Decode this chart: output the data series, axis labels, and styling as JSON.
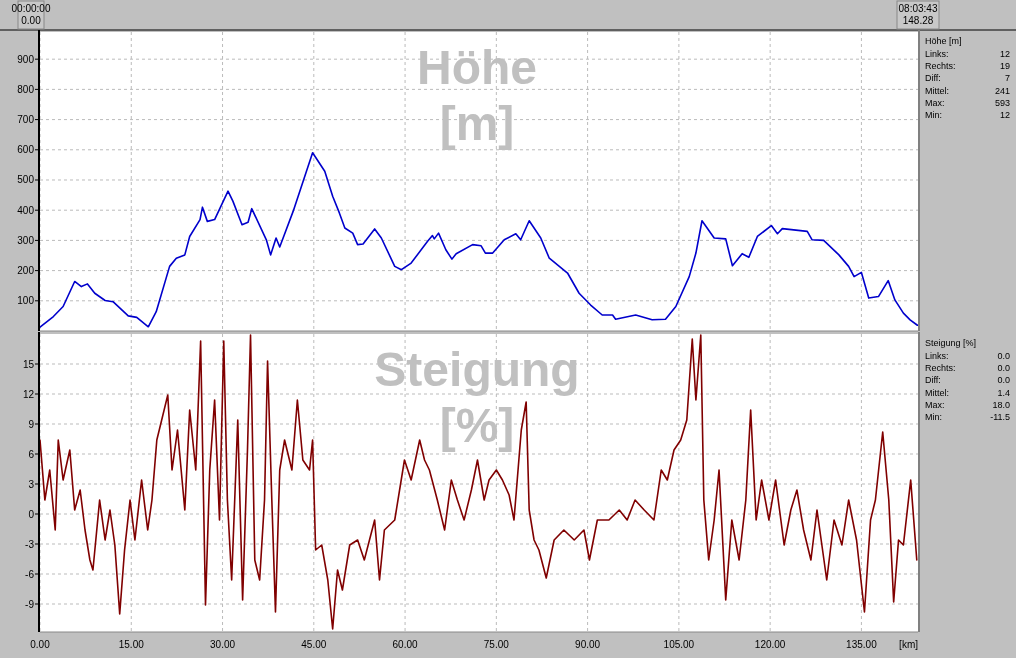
{
  "chart_data": [
    {
      "type": "line",
      "title": "Höhe [m]",
      "tick_labels": "y",
      "grid": true,
      "xlim": [
        0,
        144.3
      ],
      "ylim": [
        0,
        990
      ],
      "xticks": [
        {
          "value": 0,
          "label": null
        },
        {
          "value": 15,
          "label": null
        },
        {
          "value": 30,
          "label": null
        },
        {
          "value": 45,
          "label": null
        },
        {
          "value": 60,
          "label": null
        },
        {
          "value": 75,
          "label": null
        },
        {
          "value": 90,
          "label": null
        },
        {
          "value": 105,
          "label": null
        },
        {
          "value": 120,
          "label": null
        },
        {
          "value": 135,
          "label": null
        }
      ],
      "yticks": [
        100,
        200,
        300,
        400,
        500,
        600,
        700,
        800,
        900
      ],
      "annotations": [
        "00:00:00",
        "0.00",
        "08:03:43",
        "148.28",
        "Höhe [m]",
        "Links:",
        "12",
        "Rechts:",
        "19",
        "Diff:",
        "7",
        "Mittel:",
        "241",
        "Max:",
        "593",
        "Min:",
        "12"
      ],
      "series": [
        {
          "color": "#0000cc",
          "x": [
            0,
            2.2,
            3.8,
            5.7,
            6.8,
            7.8,
            9.0,
            10.7,
            12.0,
            14.5,
            15.9,
            17.8,
            19.1,
            21.3,
            22.4,
            23.8,
            24.6,
            26.3,
            26.7,
            27.5,
            28.7,
            30.9,
            31.7,
            33.2,
            34.2,
            34.8,
            37.2,
            37.9,
            38.8,
            39.4,
            41.6,
            44.8,
            46.8,
            48.1,
            49.2,
            50.1,
            51.4,
            52.2,
            53.1,
            55.0,
            56.1,
            58.3,
            59.4,
            61.0,
            63.7,
            64.5,
            64.8,
            65.5,
            66.7,
            67.7,
            68.4,
            71.1,
            72.5,
            73.2,
            74.4,
            76.3,
            78.2,
            79.0,
            80.4,
            82.3,
            83.7,
            86.7,
            88.6,
            90.5,
            92.4,
            94.1,
            94.6,
            97.9,
            100.6,
            102.8,
            104.5,
            106.7,
            107.8,
            108.8,
            110.8,
            112.7,
            113.8,
            115.4,
            116.5,
            117.9,
            120.2,
            121.2,
            122.0,
            126.1,
            126.9,
            128.8,
            131.3,
            132.9,
            133.8,
            135.0,
            136.2,
            137.8,
            139.4,
            140.5,
            141.9,
            143.0,
            144.2
          ],
          "values": [
            13,
            48,
            81,
            164,
            147,
            156,
            125,
            101,
            97,
            50,
            45,
            14,
            64,
            214,
            241,
            252,
            313,
            369,
            410,
            363,
            369,
            463,
            430,
            352,
            360,
            405,
            302,
            252,
            308,
            278,
            396,
            590,
            529,
            446,
            391,
            341,
            324,
            286,
            288,
            338,
            308,
            214,
            203,
            225,
            297,
            316,
            305,
            324,
            269,
            238,
            256,
            286,
            282,
            258,
            258,
            302,
            322,
            302,
            365,
            308,
            241,
            192,
            125,
            86,
            53,
            53,
            39,
            53,
            37,
            39,
            81,
            180,
            258,
            365,
            308,
            305,
            216,
            256,
            244,
            313,
            349,
            322,
            339,
            330,
            302,
            300,
            252,
            214,
            180,
            194,
            109,
            114,
            167,
            103,
            59,
            37,
            19
          ]
        }
      ]
    },
    {
      "type": "line",
      "title": "Steigung [%]",
      "xlabel": "[km]",
      "grid": true,
      "xlim": [
        0,
        144.3
      ],
      "ylim": [
        -11.8,
        18
      ],
      "xticks": [
        {
          "value": 0,
          "label": "0.00"
        },
        {
          "value": 15,
          "label": "15.00"
        },
        {
          "value": 30,
          "label": "30.00"
        },
        {
          "value": 45,
          "label": "45.00"
        },
        {
          "value": 60,
          "label": "60.00"
        },
        {
          "value": 75,
          "label": "75.00"
        },
        {
          "value": 90,
          "label": "90.00"
        },
        {
          "value": 105,
          "label": "105.00"
        },
        {
          "value": 120,
          "label": "120.00"
        },
        {
          "value": 135,
          "label": "135.00"
        }
      ],
      "yticks": [
        -9,
        -6,
        -3,
        0,
        3,
        6,
        9,
        12,
        15
      ],
      "annotations": [
        "Steigung [%]",
        "Links:",
        "0.0",
        "Rechts:",
        "0.0",
        "Diff:",
        "0.0",
        "Mittel:",
        "1.4",
        "Max:",
        "18.0",
        "Min:",
        "-11.5"
      ],
      "series": [
        {
          "color": "#800000",
          "x": [
            0,
            0.8,
            1.6,
            2.5,
            3.0,
            3.8,
            4.9,
            5.7,
            6.6,
            7.4,
            8.2,
            8.7,
            9.8,
            10.7,
            11.5,
            12.3,
            13.1,
            13.9,
            14.8,
            15.6,
            16.7,
            17.7,
            18.4,
            19.2,
            20.0,
            21.0,
            21.7,
            22.6,
            23.8,
            24.6,
            25.6,
            26.4,
            27.2,
            27.9,
            28.7,
            29.5,
            30.2,
            30.8,
            31.5,
            32.5,
            33.3,
            34.1,
            34.6,
            35.3,
            36.1,
            36.9,
            37.4,
            38.1,
            38.7,
            39.4,
            40.2,
            41.4,
            42.3,
            43.2,
            44.3,
            44.8,
            45.3,
            46.3,
            47.3,
            48.1,
            48.9,
            49.7,
            50.9,
            52.2,
            53.3,
            55.0,
            55.8,
            56.6,
            58.3,
            59.1,
            59.9,
            61.0,
            62.4,
            63.2,
            64.0,
            65.3,
            66.5,
            67.6,
            68.6,
            69.7,
            70.9,
            71.9,
            73.0,
            73.8,
            75.0,
            76.0,
            77.1,
            77.9,
            79.1,
            79.9,
            80.4,
            81.2,
            82.0,
            83.2,
            84.5,
            86.1,
            87.8,
            89.4,
            90.3,
            91.6,
            93.5,
            95.2,
            96.5,
            97.8,
            99.3,
            100.9,
            102.1,
            103.1,
            104.2,
            105.3,
            106.3,
            107.2,
            107.8,
            108.6,
            109.1,
            109.9,
            110.8,
            111.6,
            112.7,
            113.7,
            114.9,
            116.0,
            116.8,
            117.7,
            118.6,
            119.8,
            120.9,
            122.3,
            123.4,
            124.4,
            125.5,
            126.7,
            127.7,
            129.3,
            130.5,
            131.8,
            132.9,
            134.2,
            135.5,
            136.5,
            137.3,
            138.5,
            139.5,
            140.3,
            141.1,
            141.9,
            143.1,
            144.1
          ],
          "values": [
            7.4,
            1.4,
            4.4,
            -1.6,
            7.4,
            3.4,
            6.4,
            0.4,
            2.4,
            -1.6,
            -4.6,
            -5.6,
            1.4,
            -2.6,
            0.4,
            -3.1,
            -10.0,
            -3.6,
            1.4,
            -2.6,
            3.4,
            -1.6,
            1.4,
            7.4,
            9.4,
            11.9,
            4.4,
            8.4,
            0.4,
            10.4,
            4.4,
            17.3,
            -9.1,
            4.4,
            11.4,
            -0.6,
            17.3,
            1.4,
            -6.6,
            9.4,
            -8.6,
            6.4,
            17.9,
            -4.6,
            -6.6,
            1.4,
            15.3,
            1.4,
            -9.8,
            4.4,
            7.4,
            4.4,
            11.4,
            5.4,
            4.4,
            7.4,
            -3.6,
            -3.1,
            -6.6,
            -11.5,
            -5.6,
            -7.6,
            -3.1,
            -2.6,
            -4.6,
            -0.6,
            -6.6,
            -1.6,
            -0.6,
            2.4,
            5.4,
            3.4,
            7.4,
            5.4,
            4.4,
            1.4,
            -1.6,
            3.4,
            1.4,
            -0.6,
            2.4,
            5.4,
            1.4,
            3.4,
            4.4,
            3.4,
            1.9,
            -0.6,
            8.4,
            11.2,
            0.4,
            -2.6,
            -3.6,
            -6.4,
            -2.6,
            -1.6,
            -2.6,
            -1.6,
            -4.6,
            -0.6,
            -0.6,
            0.4,
            -0.6,
            1.4,
            0.4,
            -0.6,
            4.4,
            3.4,
            6.4,
            7.4,
            9.4,
            17.5,
            11.4,
            17.9,
            1.4,
            -4.6,
            -0.6,
            4.4,
            -8.6,
            -0.6,
            -4.6,
            1.4,
            10.4,
            -0.6,
            3.4,
            -0.6,
            3.4,
            -3.1,
            0.4,
            2.4,
            -1.6,
            -4.6,
            0.4,
            -6.6,
            -0.6,
            -3.1,
            1.4,
            -2.6,
            -9.8,
            -0.6,
            1.4,
            8.2,
            1.4,
            -8.8,
            -2.6,
            -3.1,
            3.4,
            -4.6
          ]
        }
      ]
    }
  ]
}
